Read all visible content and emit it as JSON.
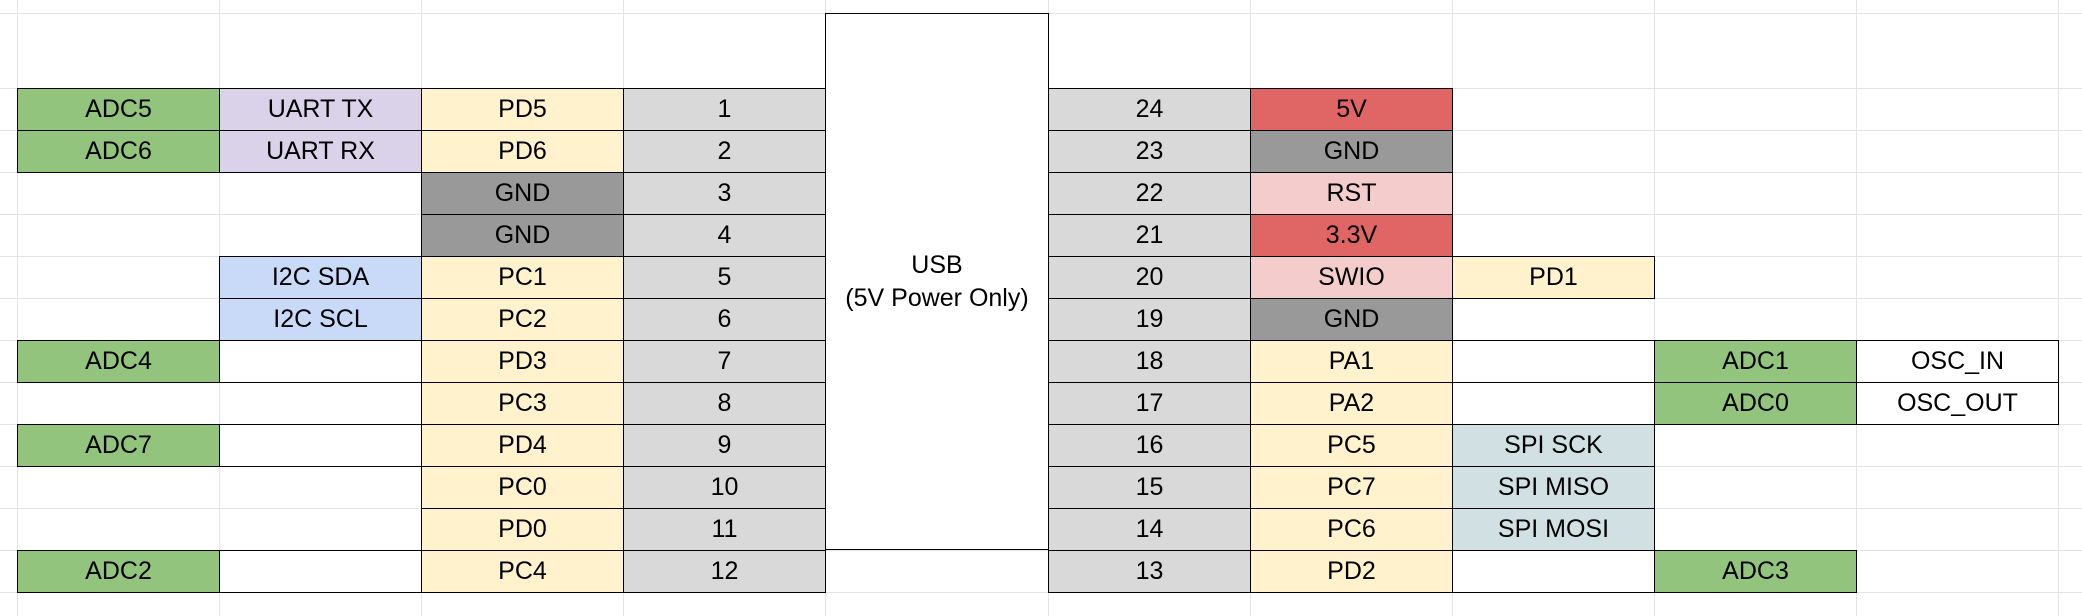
{
  "usb": {
    "line1": "USB",
    "line2": "(5V Power Only)"
  },
  "colors": {
    "adc": "#93c47d",
    "uart": "#d9d2e9",
    "i2c": "#c9daf8",
    "port": "#fff2cc",
    "pin_number": "#d9d9d9",
    "gnd": "#999999",
    "power": "#e06666",
    "control": "#f4cccc",
    "spi": "#d0e0e3",
    "empty": "#ffffff"
  },
  "rows": [
    {
      "left": [
        {
          "t": "ADC5",
          "c": "adc"
        },
        {
          "t": "UART TX",
          "c": "uart"
        },
        {
          "t": "PD5",
          "c": "port"
        },
        {
          "t": "1",
          "c": "pin_number"
        }
      ],
      "right": [
        {
          "t": "24",
          "c": "pin_number"
        },
        {
          "t": "5V",
          "c": "power"
        }
      ]
    },
    {
      "left": [
        {
          "t": "ADC6",
          "c": "adc"
        },
        {
          "t": "UART RX",
          "c": "uart"
        },
        {
          "t": "PD6",
          "c": "port"
        },
        {
          "t": "2",
          "c": "pin_number"
        }
      ],
      "right": [
        {
          "t": "23",
          "c": "pin_number"
        },
        {
          "t": "GND",
          "c": "gnd"
        }
      ]
    },
    {
      "left": [
        null,
        null,
        {
          "t": "GND",
          "c": "gnd"
        },
        {
          "t": "3",
          "c": "pin_number"
        }
      ],
      "right": [
        {
          "t": "22",
          "c": "pin_number"
        },
        {
          "t": "RST",
          "c": "control"
        }
      ]
    },
    {
      "left": [
        null,
        null,
        {
          "t": "GND",
          "c": "gnd"
        },
        {
          "t": "4",
          "c": "pin_number"
        }
      ],
      "right": [
        {
          "t": "21",
          "c": "pin_number"
        },
        {
          "t": "3.3V",
          "c": "power"
        }
      ]
    },
    {
      "left": [
        null,
        {
          "t": "I2C SDA",
          "c": "i2c"
        },
        {
          "t": "PC1",
          "c": "port"
        },
        {
          "t": "5",
          "c": "pin_number"
        }
      ],
      "right": [
        {
          "t": "20",
          "c": "pin_number"
        },
        {
          "t": "SWIO",
          "c": "control"
        },
        {
          "t": "PD1",
          "c": "port"
        }
      ]
    },
    {
      "left": [
        null,
        {
          "t": "I2C SCL",
          "c": "i2c"
        },
        {
          "t": "PC2",
          "c": "port"
        },
        {
          "t": "6",
          "c": "pin_number"
        }
      ],
      "right": [
        {
          "t": "19",
          "c": "pin_number"
        },
        {
          "t": "GND",
          "c": "gnd"
        }
      ]
    },
    {
      "left": [
        {
          "t": "ADC4",
          "c": "adc"
        },
        {
          "t": "",
          "c": "empty"
        },
        {
          "t": "PD3",
          "c": "port"
        },
        {
          "t": "7",
          "c": "pin_number"
        }
      ],
      "right": [
        {
          "t": "18",
          "c": "pin_number"
        },
        {
          "t": "PA1",
          "c": "port"
        },
        {
          "t": "",
          "c": "empty"
        },
        {
          "t": "ADC1",
          "c": "adc"
        },
        {
          "t": "OSC_IN",
          "c": "empty"
        }
      ]
    },
    {
      "left": [
        null,
        null,
        {
          "t": "PC3",
          "c": "port"
        },
        {
          "t": "8",
          "c": "pin_number"
        }
      ],
      "right": [
        {
          "t": "17",
          "c": "pin_number"
        },
        {
          "t": "PA2",
          "c": "port"
        },
        {
          "t": "",
          "c": "empty"
        },
        {
          "t": "ADC0",
          "c": "adc"
        },
        {
          "t": "OSC_OUT",
          "c": "empty"
        }
      ]
    },
    {
      "left": [
        {
          "t": "ADC7",
          "c": "adc"
        },
        {
          "t": "",
          "c": "empty"
        },
        {
          "t": "PD4",
          "c": "port"
        },
        {
          "t": "9",
          "c": "pin_number"
        }
      ],
      "right": [
        {
          "t": "16",
          "c": "pin_number"
        },
        {
          "t": "PC5",
          "c": "port"
        },
        {
          "t": "SPI SCK",
          "c": "spi"
        }
      ]
    },
    {
      "left": [
        null,
        null,
        {
          "t": "PC0",
          "c": "port"
        },
        {
          "t": "10",
          "c": "pin_number"
        }
      ],
      "right": [
        {
          "t": "15",
          "c": "pin_number"
        },
        {
          "t": "PC7",
          "c": "port"
        },
        {
          "t": "SPI MISO",
          "c": "spi"
        }
      ]
    },
    {
      "left": [
        null,
        null,
        {
          "t": "PD0",
          "c": "port"
        },
        {
          "t": "11",
          "c": "pin_number"
        }
      ],
      "right": [
        {
          "t": "14",
          "c": "pin_number"
        },
        {
          "t": "PC6",
          "c": "port"
        },
        {
          "t": "SPI MOSI",
          "c": "spi"
        }
      ]
    },
    {
      "left": [
        {
          "t": "ADC2",
          "c": "adc"
        },
        {
          "t": "",
          "c": "empty"
        },
        {
          "t": "PC4",
          "c": "port"
        },
        {
          "t": "12",
          "c": "pin_number"
        }
      ],
      "right": [
        {
          "t": "13",
          "c": "pin_number"
        },
        {
          "t": "PD2",
          "c": "port"
        },
        {
          "t": "",
          "c": "empty"
        },
        {
          "t": "ADC3",
          "c": "adc"
        }
      ]
    }
  ]
}
